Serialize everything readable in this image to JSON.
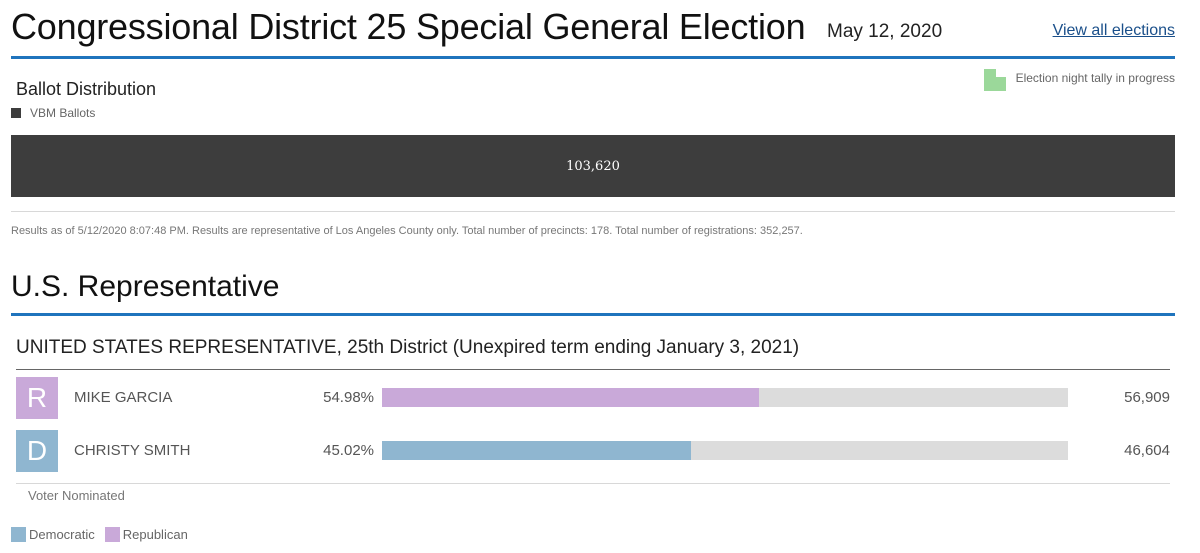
{
  "header": {
    "title": "Congressional District 25 Special General Election",
    "date": "May 12, 2020",
    "view_all_link": "View all elections"
  },
  "tally_legend": {
    "label": "Election night tally in progress",
    "color": "#9bd89a"
  },
  "ballot_distribution": {
    "title": "Ballot Distribution",
    "legend_label": "VBM Ballots",
    "bar_value": "103,620",
    "fill_fraction": 1.0,
    "bar_color": "#3d3d3d"
  },
  "results_note": "Results as of 5/12/2020 8:07:48 PM. Results are representative of Los Angeles County only. Total number of precincts: 178. Total number of registrations: 352,257.",
  "section_title": "U.S. Representative",
  "contest": {
    "title": "UNITED STATES REPRESENTATIVE, 25th District (Unexpired term ending January 3, 2021)",
    "candidates": [
      {
        "party_letter": "R",
        "name": "MIKE GARCIA",
        "percent": "54.98%",
        "fraction": 0.5498,
        "votes": "56,909",
        "color": "#c9a9d9"
      },
      {
        "party_letter": "D",
        "name": "CHRISTY SMITH",
        "percent": "45.02%",
        "fraction": 0.4502,
        "votes": "46,604",
        "color": "#8fb6d0"
      }
    ],
    "footnote": "Voter Nominated"
  },
  "party_legend": [
    {
      "label": "Democratic",
      "color": "#8fb6d0"
    },
    {
      "label": "Republican",
      "color": "#c9a9d9"
    }
  ]
}
